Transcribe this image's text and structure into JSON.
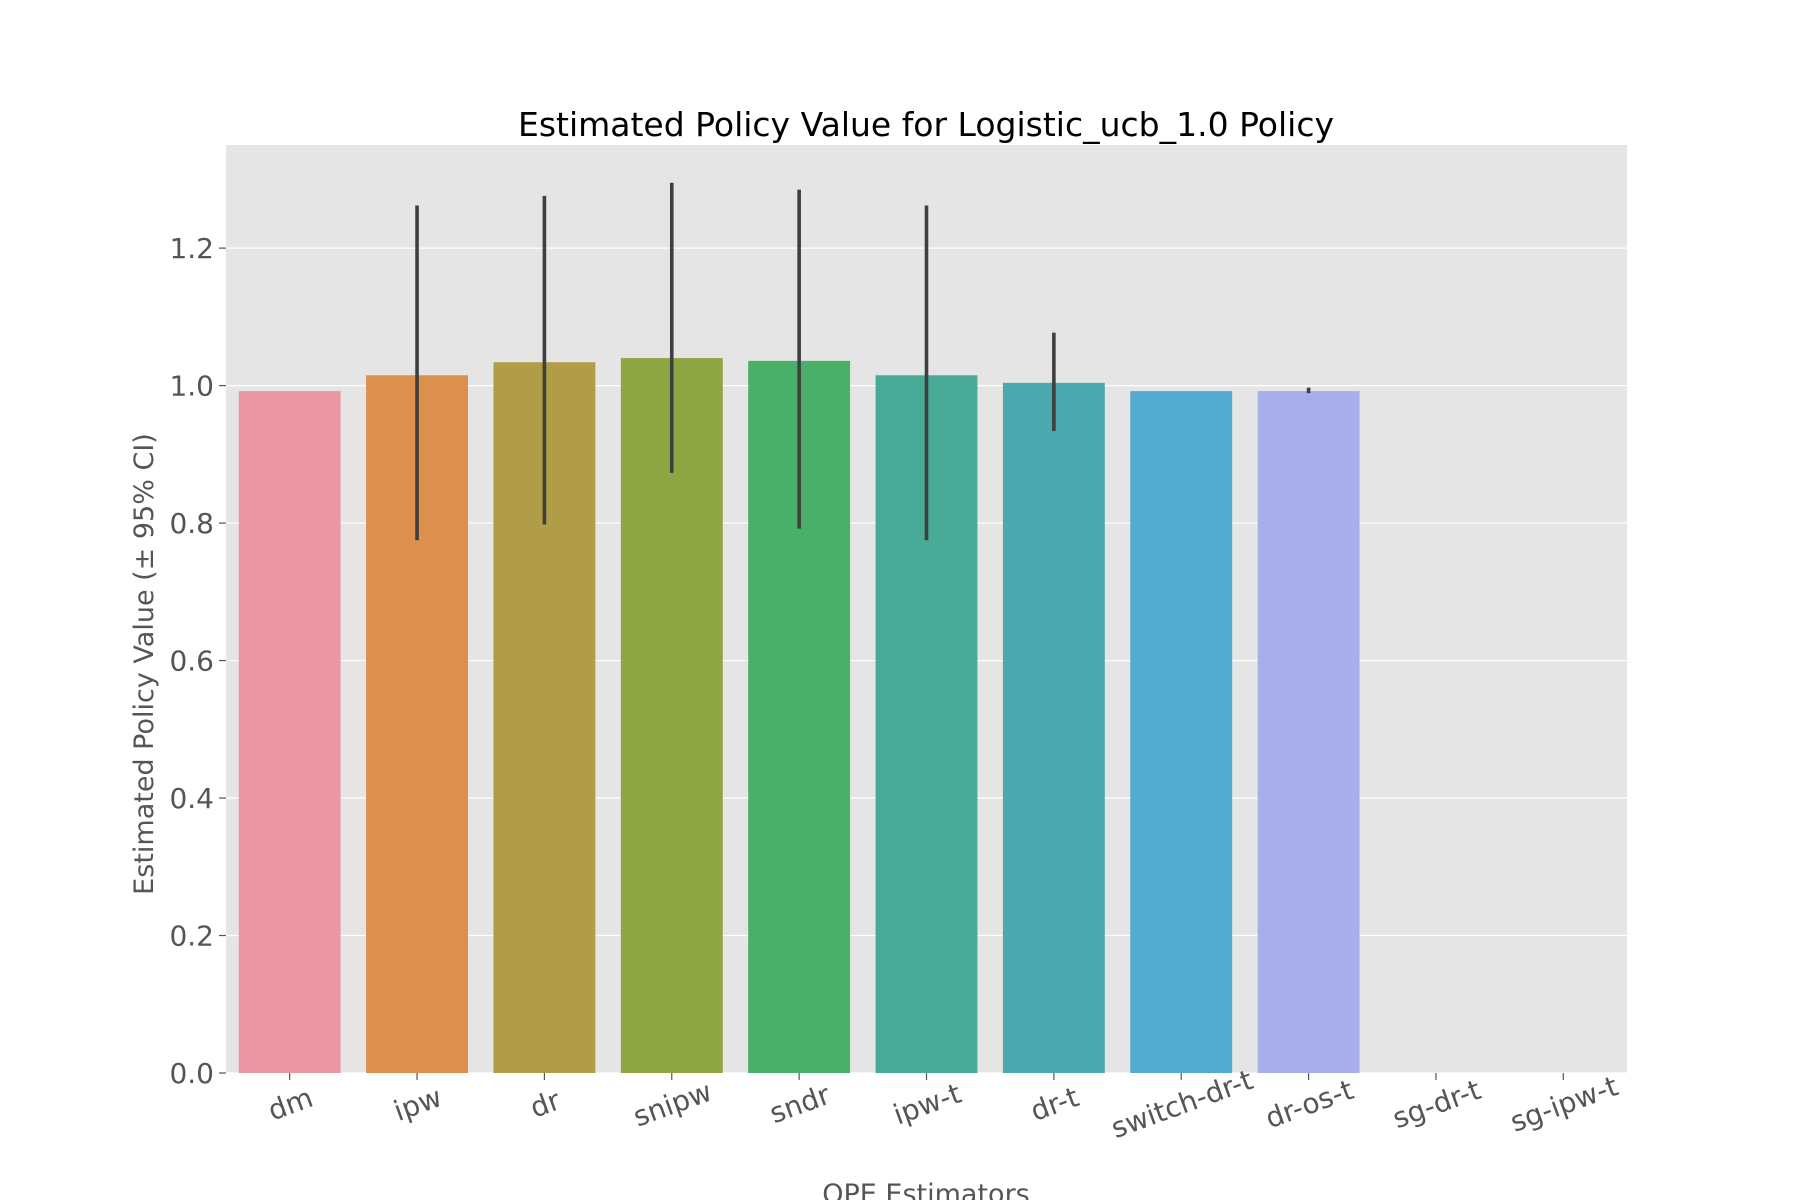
{
  "chart_data": {
    "type": "bar",
    "title": "Estimated Policy Value for Logistic_ucb_1.0 Policy",
    "xlabel": "OPE Estimators",
    "ylabel": "Estimated Policy Value (± 95% CI)",
    "ylim": [
      0,
      1.35
    ],
    "yticks": [
      "0.0",
      "0.2",
      "0.4",
      "0.6",
      "0.8",
      "1.0",
      "1.2"
    ],
    "grid": true,
    "legend": "none",
    "categories": [
      "dm",
      "ipw",
      "dr",
      "snipw",
      "sndr",
      "ipw-t",
      "dr-t",
      "switch-dr-t",
      "dr-os-t",
      "sg-dr-t",
      "sg-ipw-t"
    ],
    "values": [
      0.992,
      1.015,
      1.034,
      1.04,
      1.036,
      1.015,
      1.004,
      0.992,
      0.992,
      null,
      null
    ],
    "ci_low": [
      null,
      0.775,
      0.798,
      0.873,
      0.792,
      0.775,
      0.934,
      null,
      0.989,
      null,
      null
    ],
    "ci_high": [
      null,
      1.262,
      1.276,
      1.295,
      1.285,
      1.262,
      1.077,
      null,
      0.997,
      null,
      null
    ],
    "colors": [
      "#ea96a3",
      "#dd8f4e",
      "#b19c47",
      "#8ea544",
      "#48b068",
      "#49aa98",
      "#4ca9b0",
      "#53abd2",
      "#a8aeeb",
      "#d58ee8",
      "#e890c4"
    ],
    "errorbar_color": "#3f3f3f",
    "background_color": "#e5e5e5",
    "grid_color": "#ffffff"
  }
}
